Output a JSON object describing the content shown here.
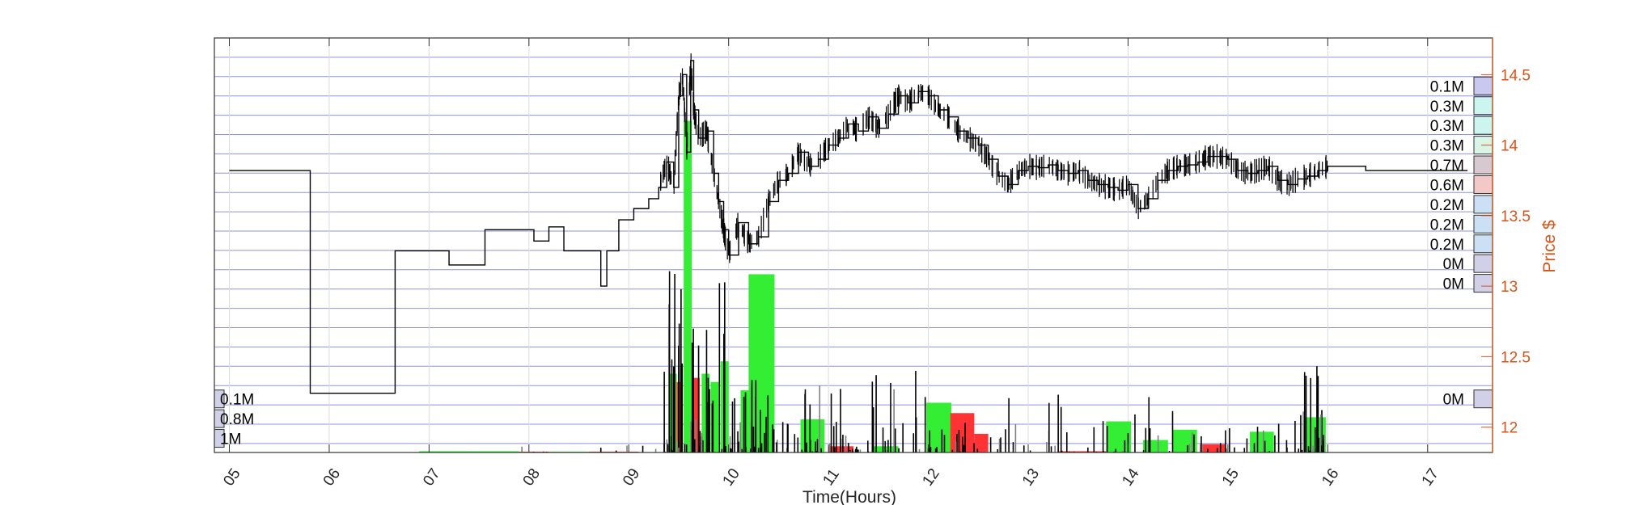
{
  "chart_data": {
    "type": "bar",
    "title": "",
    "xlabel": "Time(Hours)",
    "ylabel_right": "Price $",
    "x_ticks": [
      "05",
      "06",
      "07",
      "08",
      "09",
      "10",
      "11",
      "12",
      "13",
      "14",
      "15",
      "16",
      "17"
    ],
    "xlim": [
      4.85,
      17.65
    ],
    "price_ticks": [
      "12",
      "12.5",
      "13",
      "13.5",
      "14",
      "14.5"
    ],
    "ylim_price": [
      11.82,
      14.76
    ],
    "grid": true,
    "price_bands": [
      {
        "price": 14.42,
        "label": "0.1M",
        "color": "#c8c8f0"
      },
      {
        "price": 14.28,
        "label": "0.3M",
        "color": "#ccf5f0"
      },
      {
        "price": 14.14,
        "label": "0.3M",
        "color": "#ccf5f0"
      },
      {
        "price": 14.0,
        "label": "0.3M",
        "color": "#d8f5e8"
      },
      {
        "price": 13.86,
        "label": "0.7M",
        "color": "#d8c8d0"
      },
      {
        "price": 13.72,
        "label": "0.6M",
        "color": "#f5c8c8"
      },
      {
        "price": 13.58,
        "label": "0.2M",
        "color": "#cce0f5"
      },
      {
        "price": 13.44,
        "label": "0.2M",
        "color": "#cce0f5"
      },
      {
        "price": 13.3,
        "label": "0.2M",
        "color": "#cce0f5"
      },
      {
        "price": 13.16,
        "label": "0M",
        "color": "#d0d0e8"
      },
      {
        "price": 13.02,
        "label": "0M",
        "color": "#d0d0e8"
      },
      {
        "price": 12.2,
        "label": "0M",
        "color": "#d0d0e8"
      }
    ],
    "left_bands": [
      {
        "price": 12.2,
        "label": "0.1M"
      },
      {
        "price": 12.06,
        "label": "0.8M"
      },
      {
        "price": 11.92,
        "label": "1M"
      }
    ],
    "price_series": [
      [
        5.0,
        13.82
      ],
      [
        5.8,
        13.82
      ],
      [
        5.81,
        12.24
      ],
      [
        6.65,
        12.24
      ],
      [
        6.66,
        13.25
      ],
      [
        7.15,
        13.25
      ],
      [
        7.2,
        13.15
      ],
      [
        7.55,
        13.15
      ],
      [
        7.56,
        13.4
      ],
      [
        7.95,
        13.4
      ],
      [
        8.05,
        13.32
      ],
      [
        8.2,
        13.42
      ],
      [
        8.35,
        13.25
      ],
      [
        8.7,
        13.25
      ],
      [
        8.72,
        13.0
      ],
      [
        8.78,
        13.25
      ],
      [
        8.9,
        13.47
      ],
      [
        9.05,
        13.55
      ],
      [
        9.2,
        13.62
      ],
      [
        9.3,
        13.7
      ],
      [
        9.38,
        13.88
      ],
      [
        9.45,
        13.7
      ],
      [
        9.5,
        14.35
      ],
      [
        9.54,
        14.5
      ],
      [
        9.58,
        13.95
      ],
      [
        9.62,
        14.6
      ],
      [
        9.65,
        14.25
      ],
      [
        9.7,
        14.05
      ],
      [
        9.78,
        14.1
      ],
      [
        9.85,
        13.8
      ],
      [
        9.9,
        13.6
      ],
      [
        9.95,
        13.4
      ],
      [
        10.0,
        13.22
      ],
      [
        10.1,
        13.45
      ],
      [
        10.2,
        13.3
      ],
      [
        10.3,
        13.35
      ],
      [
        10.4,
        13.6
      ],
      [
        10.5,
        13.75
      ],
      [
        10.6,
        13.8
      ],
      [
        10.7,
        13.95
      ],
      [
        10.8,
        13.85
      ],
      [
        10.9,
        13.9
      ],
      [
        11.0,
        14.0
      ],
      [
        11.1,
        14.05
      ],
      [
        11.2,
        14.15
      ],
      [
        11.3,
        14.1
      ],
      [
        11.4,
        14.2
      ],
      [
        11.5,
        14.12
      ],
      [
        11.6,
        14.22
      ],
      [
        11.7,
        14.35
      ],
      [
        11.8,
        14.3
      ],
      [
        11.9,
        14.38
      ],
      [
        12.0,
        14.35
      ],
      [
        12.1,
        14.25
      ],
      [
        12.2,
        14.2
      ],
      [
        12.3,
        14.1
      ],
      [
        12.4,
        14.05
      ],
      [
        12.5,
        14.0
      ],
      [
        12.6,
        13.9
      ],
      [
        12.7,
        13.78
      ],
      [
        12.8,
        13.72
      ],
      [
        12.9,
        13.82
      ],
      [
        13.0,
        13.85
      ],
      [
        13.1,
        13.84
      ],
      [
        13.2,
        13.86
      ],
      [
        13.3,
        13.82
      ],
      [
        13.4,
        13.8
      ],
      [
        13.5,
        13.82
      ],
      [
        13.6,
        13.75
      ],
      [
        13.7,
        13.72
      ],
      [
        13.8,
        13.7
      ],
      [
        13.9,
        13.68
      ],
      [
        14.0,
        13.72
      ],
      [
        14.1,
        13.55
      ],
      [
        14.2,
        13.62
      ],
      [
        14.3,
        13.75
      ],
      [
        14.4,
        13.82
      ],
      [
        14.5,
        13.85
      ],
      [
        14.6,
        13.86
      ],
      [
        14.7,
        13.88
      ],
      [
        14.8,
        13.92
      ],
      [
        14.9,
        13.92
      ],
      [
        15.0,
        13.9
      ],
      [
        15.1,
        13.82
      ],
      [
        15.2,
        13.8
      ],
      [
        15.3,
        13.82
      ],
      [
        15.4,
        13.85
      ],
      [
        15.5,
        13.75
      ],
      [
        15.6,
        13.72
      ],
      [
        15.7,
        13.76
      ],
      [
        15.8,
        13.78
      ],
      [
        15.9,
        13.82
      ],
      [
        16.0,
        13.85
      ],
      [
        16.35,
        13.85
      ],
      [
        16.38,
        13.82
      ],
      [
        17.4,
        13.82
      ]
    ],
    "half_hour_volume": [
      {
        "x": 6.9,
        "w": 0.5,
        "level": 0.003,
        "color": "#33ee33"
      },
      {
        "x": 7.4,
        "w": 0.5,
        "level": 0.003,
        "color": "#33ee33"
      },
      {
        "x": 7.9,
        "w": 0.5,
        "level": 0.002,
        "color": "#ff3333"
      },
      {
        "x": 8.2,
        "w": 0.5,
        "level": 0.002,
        "color": "#33ee33"
      },
      {
        "x": 8.6,
        "w": 0.5,
        "level": 0.002,
        "color": "#ff3333"
      },
      {
        "x": 9.4,
        "w": 0.08,
        "level": 0.19,
        "color": "#33ee33"
      },
      {
        "x": 9.48,
        "w": 0.06,
        "level": 0.17,
        "color": "#ff3333"
      },
      {
        "x": 9.55,
        "w": 0.08,
        "level": 0.8,
        "color": "#33ee33"
      },
      {
        "x": 9.63,
        "w": 0.08,
        "level": 0.18,
        "color": "#ff3333"
      },
      {
        "x": 9.73,
        "w": 0.08,
        "level": 0.19,
        "color": "#33ee33"
      },
      {
        "x": 9.82,
        "w": 0.08,
        "level": 0.17,
        "color": "#33ee33"
      },
      {
        "x": 9.92,
        "w": 0.08,
        "level": 0.22,
        "color": "#33ee33"
      },
      {
        "x": 10.12,
        "w": 0.08,
        "level": 0.15,
        "color": "#33ee33"
      },
      {
        "x": 10.2,
        "w": 0.26,
        "level": 0.43,
        "color": "#33ee33"
      },
      {
        "x": 10.72,
        "w": 0.24,
        "level": 0.08,
        "color": "#33ee33"
      },
      {
        "x": 11.0,
        "w": 0.25,
        "level": 0.015,
        "color": "#ff3333"
      },
      {
        "x": 11.45,
        "w": 0.25,
        "level": 0.015,
        "color": "#33ee33"
      },
      {
        "x": 11.98,
        "w": 0.25,
        "level": 0.12,
        "color": "#33ee33"
      },
      {
        "x": 12.22,
        "w": 0.24,
        "level": 0.095,
        "color": "#ff3333"
      },
      {
        "x": 12.46,
        "w": 0.14,
        "level": 0.045,
        "color": "#ff3333"
      },
      {
        "x": 13.3,
        "w": 0.5,
        "level": 0.003,
        "color": "#ff3333"
      },
      {
        "x": 13.78,
        "w": 0.25,
        "level": 0.075,
        "color": "#33ee33"
      },
      {
        "x": 14.15,
        "w": 0.25,
        "level": 0.03,
        "color": "#33ee33"
      },
      {
        "x": 14.45,
        "w": 0.24,
        "level": 0.055,
        "color": "#33ee33"
      },
      {
        "x": 14.72,
        "w": 0.25,
        "level": 0.02,
        "color": "#ff3333"
      },
      {
        "x": 15.22,
        "w": 0.24,
        "level": 0.05,
        "color": "#33ee33"
      },
      {
        "x": 15.76,
        "w": 0.22,
        "level": 0.085,
        "color": "#33ee33"
      }
    ],
    "spike_clusters": [
      {
        "x0": 9.35,
        "x1": 10.0,
        "max_level": 0.45,
        "count": 70
      },
      {
        "x0": 10.0,
        "x1": 10.5,
        "max_level": 0.18,
        "count": 40
      },
      {
        "x0": 10.5,
        "x1": 11.2,
        "max_level": 0.18,
        "count": 40
      },
      {
        "x0": 11.2,
        "x1": 12.0,
        "max_level": 0.2,
        "count": 40
      },
      {
        "x0": 12.0,
        "x1": 12.8,
        "max_level": 0.11,
        "count": 30
      },
      {
        "x0": 12.8,
        "x1": 14.5,
        "max_level": 0.14,
        "count": 50
      },
      {
        "x0": 14.5,
        "x1": 15.7,
        "max_level": 0.08,
        "count": 40
      },
      {
        "x0": 15.7,
        "x1": 16.0,
        "max_level": 0.23,
        "count": 35
      },
      {
        "x0": 7.9,
        "x1": 8.2,
        "max_level": 0.03,
        "count": 6
      },
      {
        "x0": 8.7,
        "x1": 9.3,
        "max_level": 0.02,
        "count": 10
      }
    ]
  }
}
